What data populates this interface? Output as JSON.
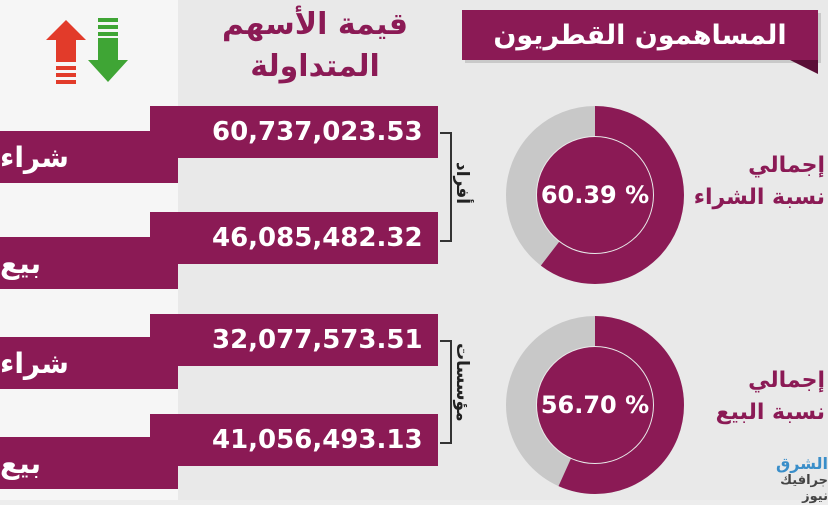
{
  "header": {
    "title": "المساهمون القطريون",
    "column_title_line1": "قيمة الأسهم",
    "column_title_line2": "المتداولة"
  },
  "groups": [
    {
      "label": "أفراد",
      "rows": [
        {
          "action": "شراء",
          "value": "60,737,023.53"
        },
        {
          "action": "بيع",
          "value": "46,085,482.32"
        }
      ]
    },
    {
      "label": "مؤسسات",
      "rows": [
        {
          "action": "شراء",
          "value": "32,077,573.51"
        },
        {
          "action": "بيع",
          "value": "41,056,493.13"
        }
      ]
    }
  ],
  "donuts": [
    {
      "text": "% 60.39",
      "fraction": 0.6039,
      "label_line1": "إجمالي",
      "label_line2": "نسبة الشراء"
    },
    {
      "text": "% 56.70",
      "fraction": 0.567,
      "label_line1": "إجمالي",
      "label_line2": "نسبة البيع"
    }
  ],
  "logo": {
    "main": "الشرق",
    "sub": "جرافيك نيوز"
  },
  "colors": {
    "primary": "#8b1a55",
    "donut_rest": "#c8c8c8",
    "up_arrow": "#e23b2a",
    "down_arrow": "#3fa535"
  },
  "icons": {
    "up": "up-arrow-icon",
    "down": "down-arrow-icon"
  }
}
